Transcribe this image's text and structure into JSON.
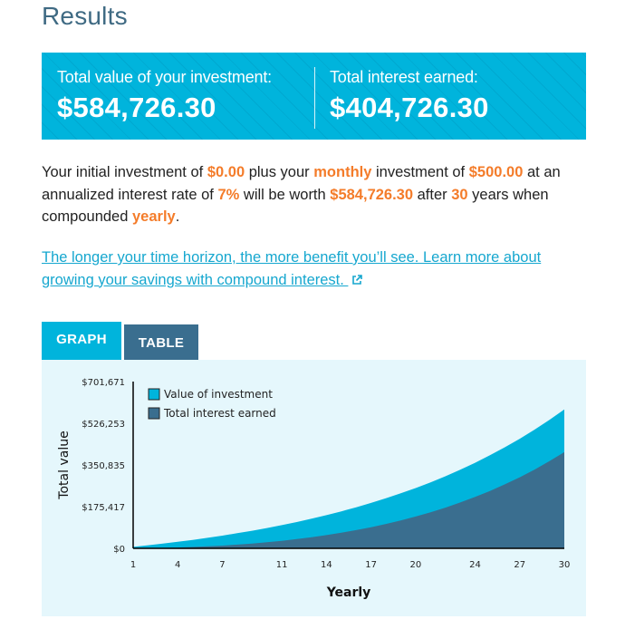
{
  "page": {
    "title": "Results"
  },
  "summary": {
    "total_value_label": "Total value of your investment:",
    "total_value": "$584,726.30",
    "total_interest_label": "Total interest earned:",
    "total_interest": "$404,726.30"
  },
  "description": {
    "p1": "Your initial investment of ",
    "initial": "$0.00",
    "p2": " plus your ",
    "frequency": "monthly",
    "p3": " investment of ",
    "contribution": "$500.00",
    "p4": " at an annualized interest rate of ",
    "rate": "7%",
    "p5": " will be worth ",
    "final_value": "$584,726.30",
    "p6": " after ",
    "years": "30",
    "p7": " years when compounded ",
    "compounding": "yearly",
    "p8": "."
  },
  "learn_more": {
    "text": "The longer your time horizon, the more benefit you’ll see. Learn more about growing your savings with compound interest. ",
    "icon": "external-link-icon"
  },
  "tabs": [
    {
      "label": "GRAPH",
      "active": true
    },
    {
      "label": "TABLE",
      "active": false
    }
  ],
  "colors": {
    "accent": "#00b4dc",
    "dark": "#3a6e8f",
    "highlight": "#f47c2a",
    "panel_bg": "#e5f7fc",
    "link": "#16a7cf"
  },
  "chart_data": {
    "type": "area",
    "title": "",
    "xlabel": "Yearly",
    "ylabel": "Total value",
    "x_ticks": [
      "1",
      "4",
      "7",
      "11",
      "14",
      "17",
      "20",
      "24",
      "27",
      "30"
    ],
    "y_ticks": [
      "$0",
      "$175,417",
      "$350,835",
      "$526,253",
      "$701,671"
    ],
    "ylim": [
      0,
      701671
    ],
    "xlim": [
      1,
      30
    ],
    "legend_position": "top-left",
    "grid": false,
    "x": [
      1,
      2,
      3,
      4,
      5,
      6,
      7,
      8,
      9,
      10,
      11,
      12,
      13,
      14,
      15,
      16,
      17,
      18,
      19,
      20,
      21,
      22,
      23,
      24,
      25,
      26,
      27,
      28,
      29,
      30
    ],
    "series": [
      {
        "name": "Value of investment",
        "color": "#00b4dc",
        "values": [
          6190,
          12814,
          19897,
          27484,
          35602,
          44277,
          53571,
          63510,
          74149,
          85530,
          97706,
          110732,
          124669,
          139587,
          155548,
          172633,
          190903,
          210456,
          231379,
          253767,
          277723,
          303348,
          330774,
          360123,
          391515,
          425120,
          461068,
          499526,
          540691,
          584726
        ]
      },
      {
        "name": "Total interest earned",
        "color": "#3a6e8f",
        "values": [
          190,
          814,
          1897,
          3484,
          5602,
          8277,
          11571,
          15510,
          20149,
          25530,
          31706,
          38732,
          46669,
          55587,
          65548,
          76633,
          88903,
          102456,
          117379,
          133767,
          151723,
          171348,
          192774,
          216123,
          241515,
          269120,
          299068,
          331526,
          366691,
          404726
        ]
      }
    ]
  }
}
